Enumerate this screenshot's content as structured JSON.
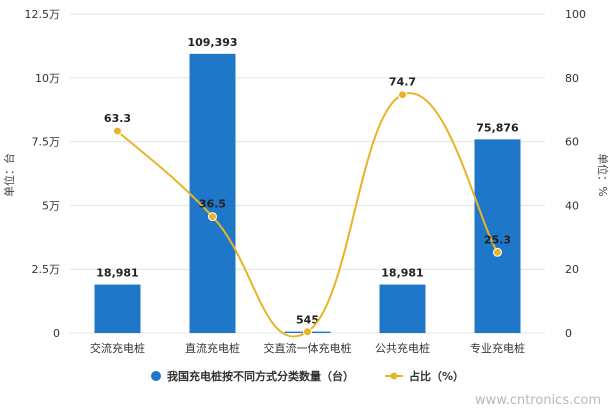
{
  "chart_data": {
    "type": "bar+line",
    "categories": [
      "交流充电桩",
      "直流充电桩",
      "交直流一体充电桩",
      "公共充电桩",
      "专业充电桩"
    ],
    "series": [
      {
        "name": "我国充电桩按不同方式分类数量（台）",
        "type": "bar",
        "axis": "left",
        "values": [
          18981,
          109393,
          545,
          18981,
          75876
        ],
        "labels": [
          "18,981",
          "109,393",
          "545",
          "18,981",
          "75,876"
        ],
        "color": "#1f77c9"
      },
      {
        "name": "占比（%）",
        "type": "line",
        "axis": "right",
        "smooth": true,
        "values": [
          63.3,
          36.5,
          0.4,
          74.7,
          25.3
        ],
        "labels": [
          "63.3",
          "36.5",
          "",
          "74.7",
          "25.3"
        ],
        "color": "#e8b425"
      }
    ],
    "left_axis": {
      "label": "单位：台",
      "ylim": [
        0,
        125000
      ],
      "ticks": [
        0,
        25000,
        50000,
        75000,
        100000,
        125000
      ],
      "tick_labels": [
        "0",
        "2.5万",
        "5万",
        "7.5万",
        "10万",
        "12.5万"
      ]
    },
    "right_axis": {
      "label": "单位：%",
      "ylim": [
        0,
        100
      ],
      "ticks": [
        0,
        20,
        40,
        60,
        80,
        100
      ],
      "tick_labels": [
        "0",
        "20",
        "40",
        "60",
        "80",
        "100"
      ]
    },
    "grid": true,
    "legend_position": "bottom"
  },
  "watermark": "www.cntronics.com"
}
